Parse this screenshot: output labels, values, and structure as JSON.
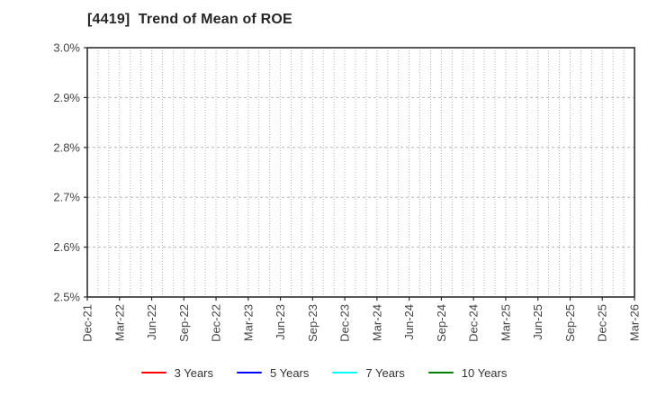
{
  "chart": {
    "title": "[4419]  Trend of Mean of ROE"
  },
  "chart_data": {
    "type": "line",
    "title": "[4419]  Trend of Mean of ROE",
    "categories": [
      "Dec-21",
      "Mar-22",
      "Jun-22",
      "Sep-22",
      "Dec-22",
      "Mar-23",
      "Jun-23",
      "Sep-23",
      "Dec-23",
      "Mar-24",
      "Jun-24",
      "Sep-24",
      "Dec-24",
      "Mar-25",
      "Jun-25",
      "Sep-25",
      "Dec-25",
      "Mar-26"
    ],
    "y_ticks": [
      "2.5%",
      "2.6%",
      "2.7%",
      "2.8%",
      "2.9%",
      "3.0%"
    ],
    "ylim": [
      2.5,
      3.0
    ],
    "y_unit": "%",
    "minor_x_divisions_per_category": 3,
    "grid": true,
    "legend_position": "bottom-center",
    "series": [
      {
        "name": "3 Years",
        "color": "#ff0000",
        "values": []
      },
      {
        "name": "5 Years",
        "color": "#0000ff",
        "values": []
      },
      {
        "name": "7 Years",
        "color": "#00ffff",
        "values": []
      },
      {
        "name": "10 Years",
        "color": "#008000",
        "values": []
      }
    ]
  },
  "colors": {
    "grid": "#b5b5b5",
    "axis": "#2e2e2e",
    "tick_text": "#444444",
    "title_text": "#262626"
  }
}
